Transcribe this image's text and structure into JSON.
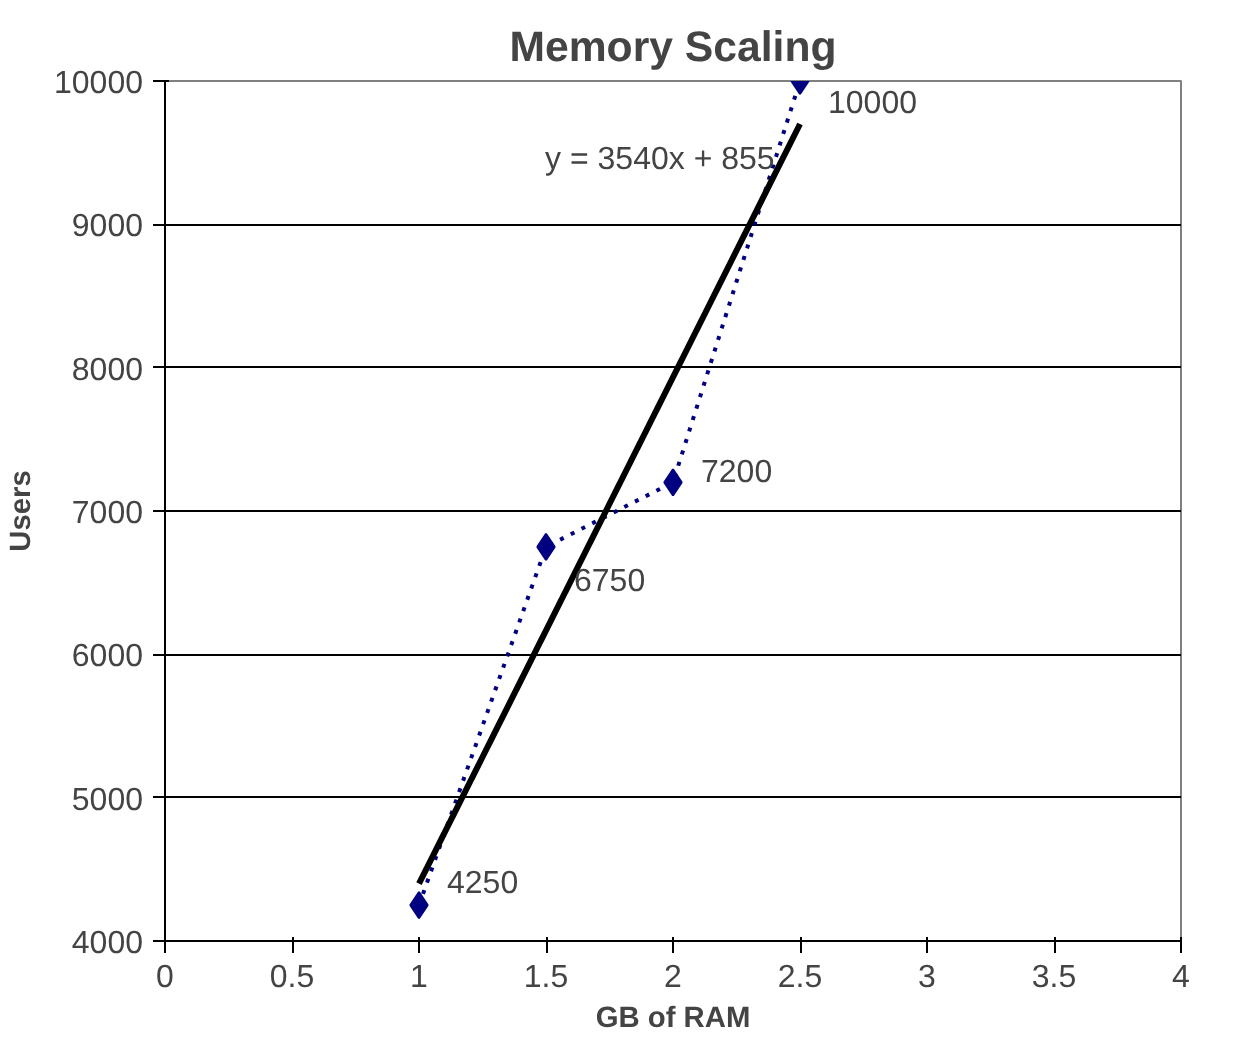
{
  "chart_data": {
    "type": "line",
    "title": "Memory Scaling",
    "xlabel": "GB of RAM",
    "ylabel": "Users",
    "x": [
      1,
      1.5,
      2,
      2.5
    ],
    "series": [
      {
        "color": "#000080",
        "values": [
          4250,
          6750,
          7200,
          10000
        ],
        "marker": "diamond",
        "line_style": "dotted",
        "data_labels": true
      },
      {
        "type": "line",
        "color": "#000000",
        "x": [
          1,
          2.5
        ],
        "values": [
          4400,
          9700
        ],
        "marker": "none",
        "line_style": "solid"
      }
    ],
    "annotations": [
      {
        "text": "y = 3540x + 855",
        "x": 2.4,
        "y": 9450
      }
    ],
    "xlim": [
      0,
      4
    ],
    "xticks": [
      0,
      0.5,
      1,
      1.5,
      2,
      2.5,
      3,
      3.5,
      4
    ],
    "ylim": [
      4000,
      10000
    ],
    "yticks": [
      4000,
      5000,
      6000,
      7000,
      8000,
      9000,
      10000
    ],
    "grid": "y"
  }
}
